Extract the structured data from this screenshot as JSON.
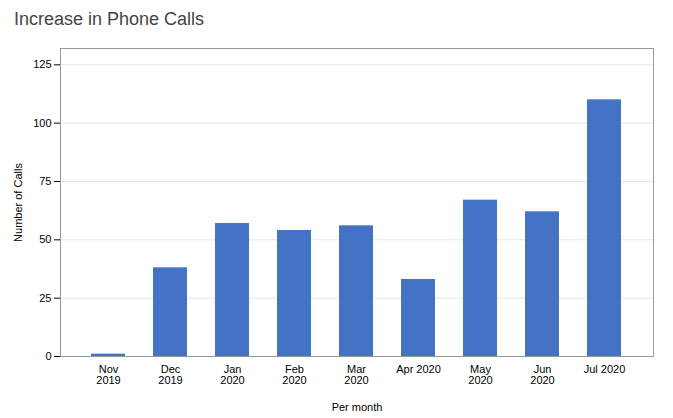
{
  "chart_data": {
    "type": "bar",
    "title": "Increase in Phone Calls",
    "xlabel": "Per month",
    "ylabel": "Number of Calls",
    "categories": [
      "Nov\n2019",
      "Dec\n2019",
      "Jan\n2020",
      "Feb\n2020",
      "Mar\n2020",
      "Apr 2020",
      "May\n2020",
      "Jun\n2020",
      "Jul 2020"
    ],
    "values": [
      1,
      38,
      57,
      54,
      56,
      33,
      67,
      62,
      110
    ],
    "color": "#4472C4",
    "ylim": [
      0,
      132
    ],
    "yticks": [
      0,
      25,
      50,
      75,
      100,
      125
    ],
    "grid": true
  }
}
